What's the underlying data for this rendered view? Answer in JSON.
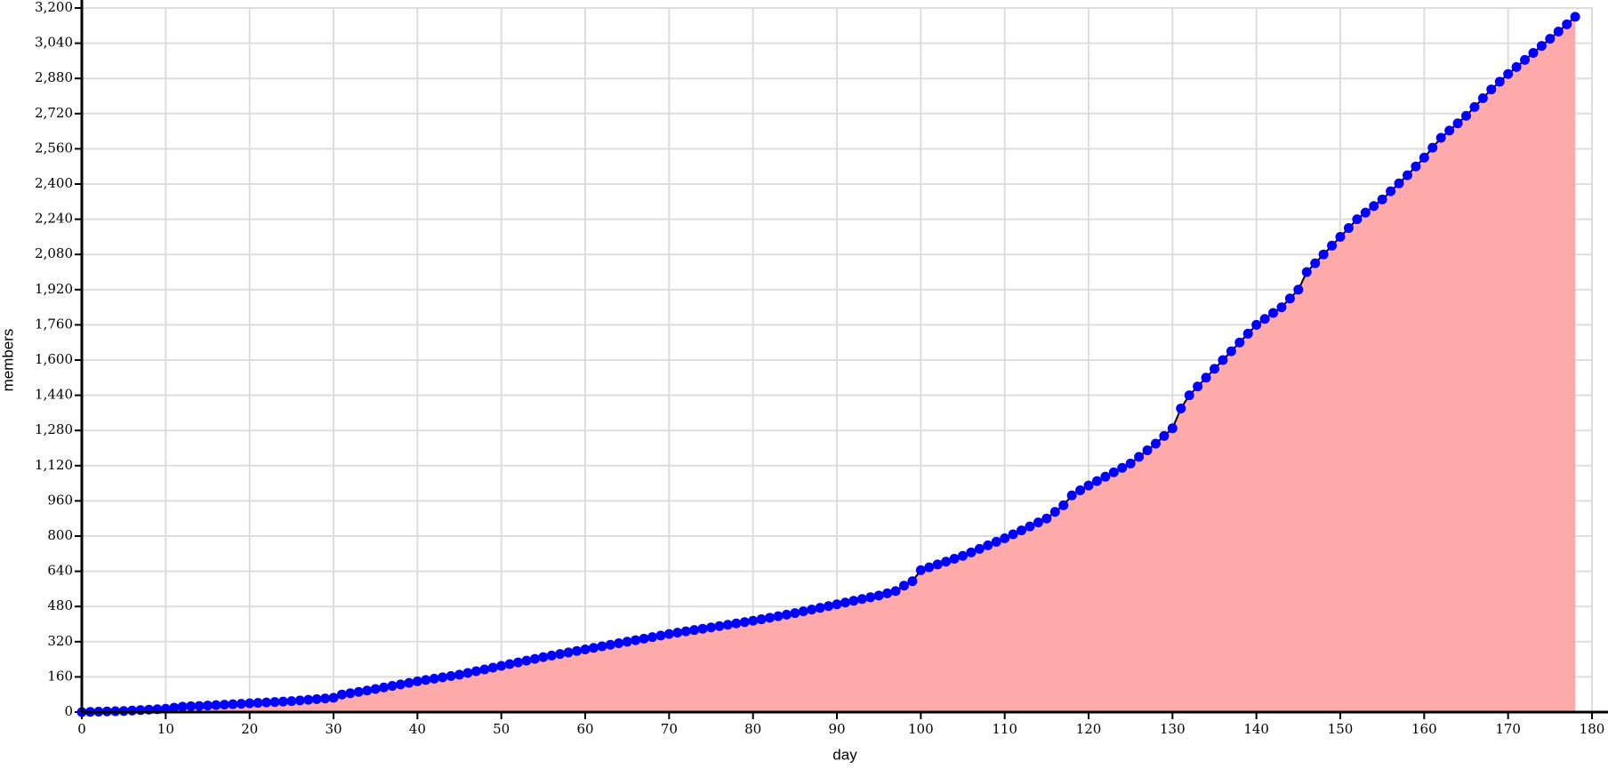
{
  "chart_data": {
    "type": "area",
    "x_label": "day",
    "y_label": "members",
    "x": [
      0,
      1,
      2,
      3,
      4,
      5,
      6,
      7,
      8,
      9,
      10,
      11,
      12,
      13,
      14,
      15,
      16,
      17,
      18,
      19,
      20,
      21,
      22,
      23,
      24,
      25,
      26,
      27,
      28,
      29,
      30,
      31,
      32,
      33,
      34,
      35,
      36,
      37,
      38,
      39,
      40,
      41,
      42,
      43,
      44,
      45,
      46,
      47,
      48,
      49,
      50,
      51,
      52,
      53,
      54,
      55,
      56,
      57,
      58,
      59,
      60,
      61,
      62,
      63,
      64,
      65,
      66,
      67,
      68,
      69,
      70,
      71,
      72,
      73,
      74,
      75,
      76,
      77,
      78,
      79,
      80,
      81,
      82,
      83,
      84,
      85,
      86,
      87,
      88,
      89,
      90,
      91,
      92,
      93,
      94,
      95,
      96,
      97,
      98,
      99,
      100,
      101,
      102,
      103,
      104,
      105,
      106,
      107,
      108,
      109,
      110,
      111,
      112,
      113,
      114,
      115,
      116,
      117,
      118,
      119,
      120,
      121,
      122,
      123,
      124,
      125,
      126,
      127,
      128,
      129,
      130,
      131,
      132,
      133,
      134,
      135,
      136,
      137,
      138,
      139,
      140,
      141,
      142,
      143,
      144,
      145,
      146,
      147,
      148,
      149,
      150,
      151,
      152,
      153,
      154,
      155,
      156,
      157,
      158,
      159,
      160,
      161,
      162,
      163,
      164,
      165,
      166,
      167,
      168,
      169,
      170,
      171,
      172,
      173,
      174,
      175,
      176,
      177,
      178
    ],
    "values": [
      0,
      1,
      2,
      3,
      4,
      5,
      7,
      9,
      11,
      13,
      15,
      20,
      25,
      27,
      28,
      30,
      32,
      34,
      36,
      38,
      40,
      42,
      44,
      46,
      48,
      50,
      53,
      56,
      59,
      62,
      65,
      80,
      86,
      92,
      98,
      105,
      112,
      119,
      126,
      133,
      140,
      146,
      152,
      158,
      164,
      170,
      178,
      186,
      194,
      202,
      210,
      218,
      226,
      234,
      242,
      250,
      257,
      264,
      271,
      278,
      285,
      292,
      299,
      306,
      313,
      320,
      327,
      334,
      341,
      348,
      355,
      361,
      367,
      373,
      379,
      385,
      391,
      397,
      403,
      409,
      415,
      422,
      429,
      436,
      443,
      450,
      458,
      466,
      474,
      482,
      490,
      498,
      506,
      514,
      522,
      530,
      540,
      550,
      575,
      595,
      645,
      658,
      671,
      684,
      697,
      710,
      726,
      742,
      758,
      774,
      790,
      808,
      826,
      844,
      862,
      880,
      910,
      940,
      985,
      1008,
      1030,
      1050,
      1070,
      1090,
      1110,
      1130,
      1160,
      1190,
      1220,
      1255,
      1290,
      1380,
      1440,
      1480,
      1520,
      1560,
      1600,
      1640,
      1680,
      1720,
      1760,
      1787,
      1814,
      1840,
      1880,
      1920,
      2000,
      2040,
      2080,
      2120,
      2160,
      2200,
      2240,
      2270,
      2300,
      2330,
      2367,
      2403,
      2440,
      2480,
      2520,
      2565,
      2610,
      2643,
      2676,
      2710,
      2750,
      2790,
      2830,
      2865,
      2900,
      2932,
      2964,
      2996,
      3028,
      3060,
      3093,
      3126,
      3160
    ],
    "fill_color": "#ffaaaa",
    "line_color": "#000000",
    "point_color": "#0000ff",
    "xlim": [
      0,
      180
    ],
    "xticks": [
      0,
      10,
      20,
      30,
      40,
      50,
      60,
      70,
      80,
      90,
      100,
      110,
      120,
      130,
      140,
      150,
      160,
      170,
      180
    ],
    "ylim": [
      0,
      3200
    ],
    "yticks": [
      0,
      160,
      320,
      480,
      640,
      800,
      960,
      {
        "value": 1120,
        "label": "1,120"
      },
      {
        "value": 1280,
        "label": "1,280"
      },
      {
        "value": 1440,
        "label": "1,440"
      },
      {
        "value": 1600,
        "label": "1,600"
      },
      {
        "value": 1760,
        "label": "1,760"
      },
      {
        "value": 1920,
        "label": "1,920"
      },
      {
        "value": 2080,
        "label": "2,080"
      },
      {
        "value": 2240,
        "label": "2,240"
      },
      {
        "value": 2400,
        "label": "2,400"
      },
      {
        "value": 2560,
        "label": "2,560"
      },
      {
        "value": 2720,
        "label": "2,720"
      },
      {
        "value": 2880,
        "label": "2,880"
      },
      {
        "value": 3040,
        "label": "3,040"
      },
      {
        "value": 3200,
        "label": "3,200"
      }
    ],
    "grid": true
  }
}
